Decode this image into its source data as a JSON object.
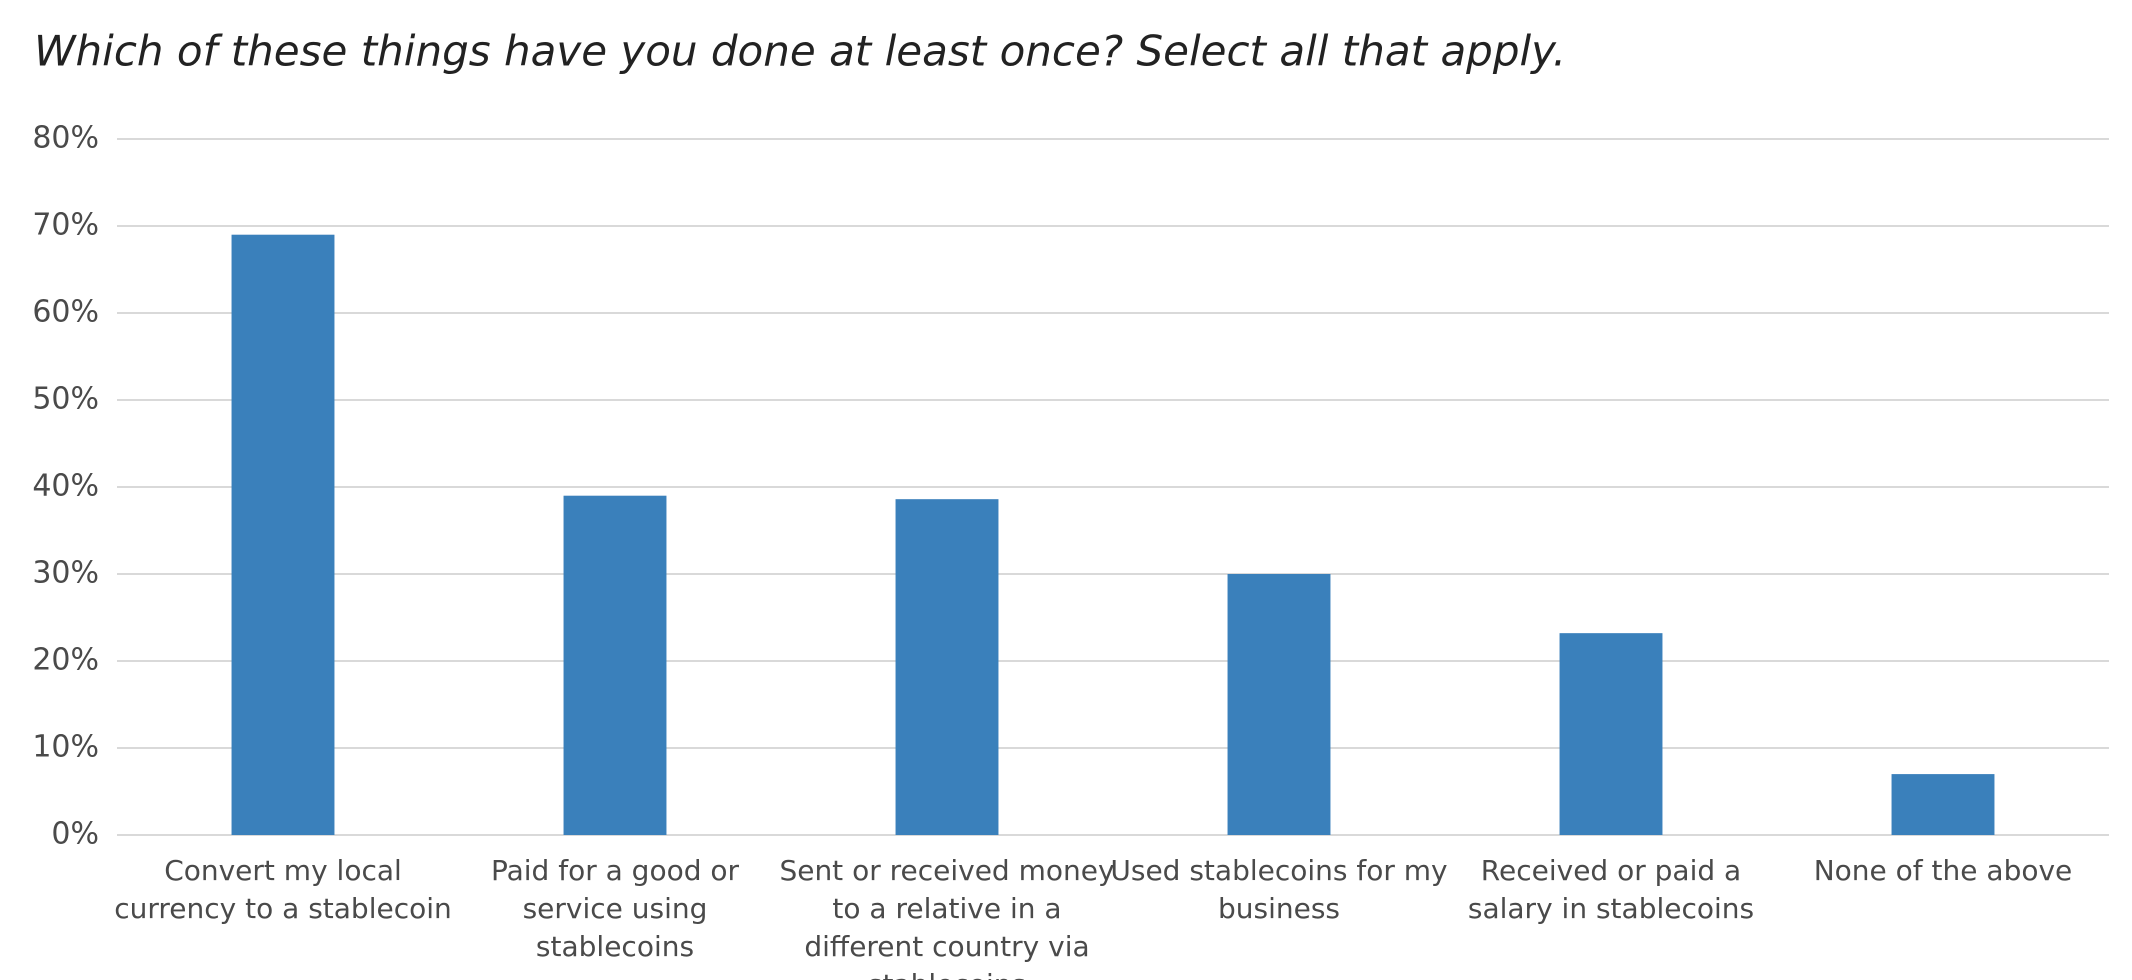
{
  "chart_data": {
    "type": "bar",
    "title": "Which of these things have you done at least once? Select all that apply.",
    "categories": [
      "Convert my local currency to a stablecoin",
      "Paid for a good or service using stablecoins",
      "Sent or received money to a relative in a different country via stablecoins",
      "Used stablecoins for my business",
      "Received or paid a salary in stablecoins",
      "None of the above"
    ],
    "values": [
      69,
      39,
      38.6,
      30,
      23.2,
      7
    ],
    "color": "#3a80bb",
    "ylim": [
      0,
      80
    ],
    "yticks": [
      {
        "value": 0,
        "label": "0%"
      },
      {
        "value": 10,
        "label": "10%"
      },
      {
        "value": 20,
        "label": "20%"
      },
      {
        "value": 30,
        "label": "30%"
      },
      {
        "value": 40,
        "label": "40%"
      },
      {
        "value": 50,
        "label": "50%"
      },
      {
        "value": 60,
        "label": "60%"
      },
      {
        "value": 70,
        "label": "70%"
      },
      {
        "value": 80,
        "label": "80%"
      }
    ],
    "grid": true
  }
}
